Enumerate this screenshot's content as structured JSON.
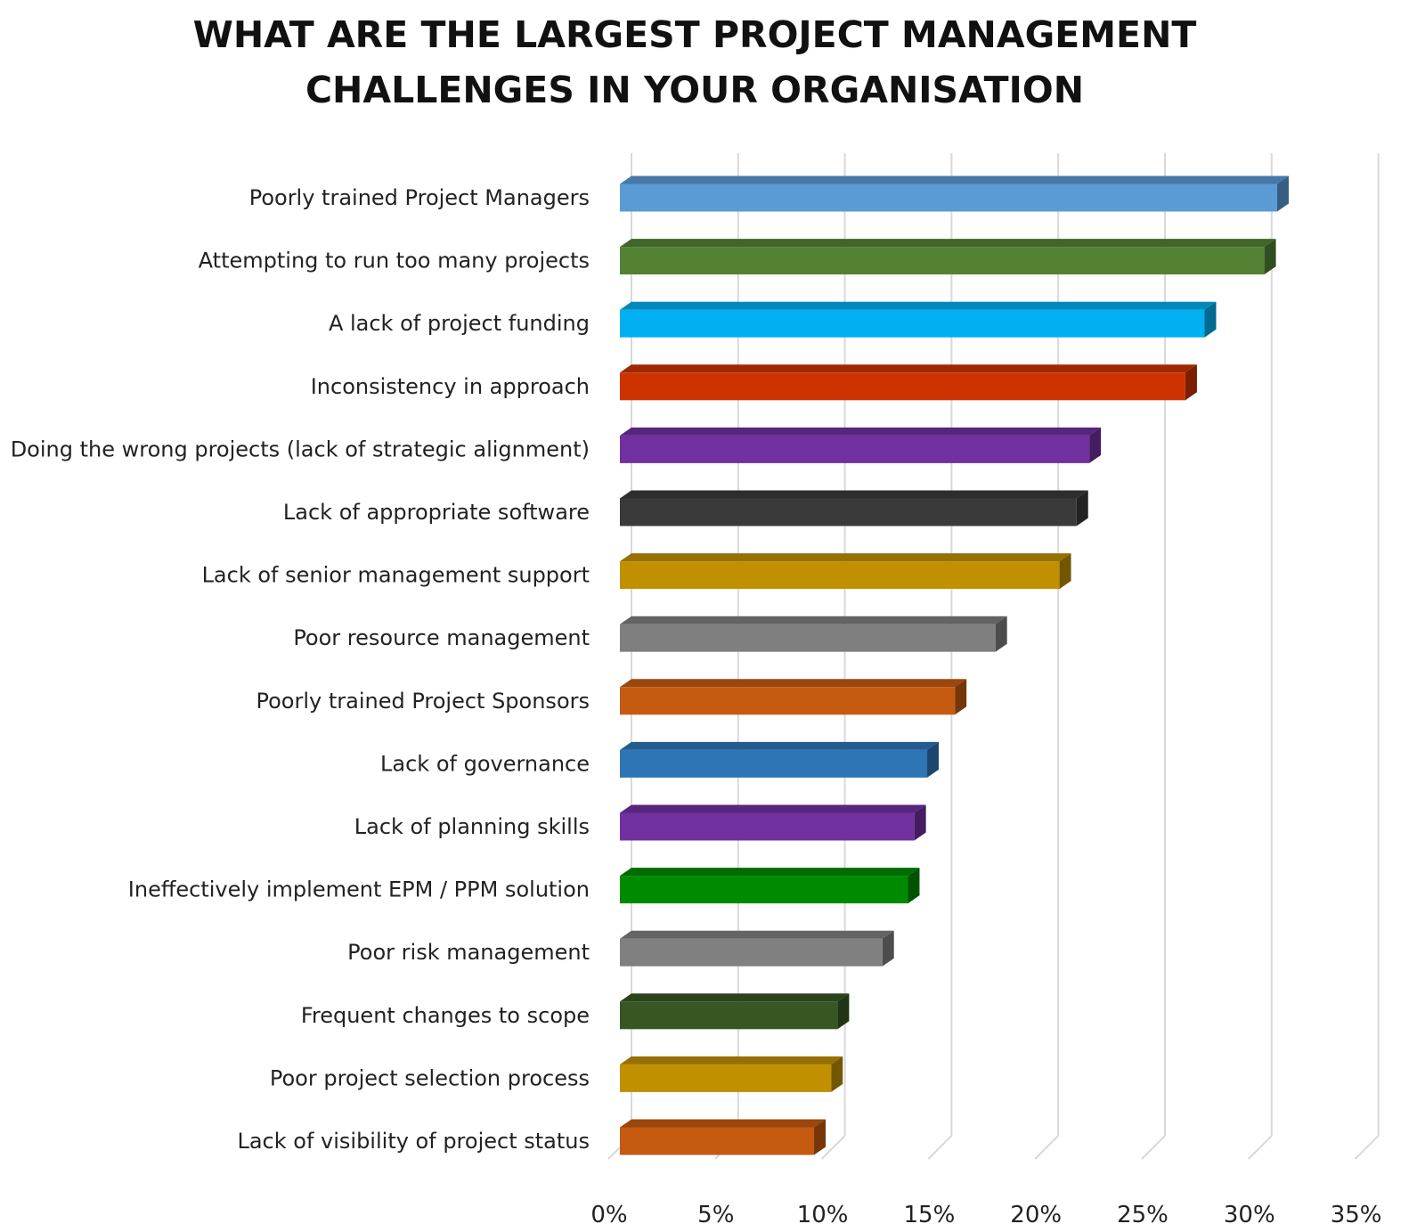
{
  "chart_data": {
    "type": "bar",
    "orientation": "horizontal",
    "style": "3d",
    "title": "WHAT ARE THE LARGEST PROJECT MANAGEMENT CHALLENGES IN YOUR ORGANISATION",
    "title_lines": [
      "WHAT ARE THE LARGEST PROJECT MANAGEMENT",
      "CHALLENGES IN YOUR ORGANISATION"
    ],
    "categories": [
      "Poorly trained Project Managers",
      "Attempting to run too many projects",
      "A lack of project funding",
      "Inconsistency in approach",
      "Doing the wrong projects (lack of strategic alignment)",
      "Lack of appropriate software",
      "Lack of senior management support",
      "Poor resource management",
      "Poorly trained Project Sponsors",
      "Lack of governance",
      "Lack of planning skills",
      "Ineffectively implement EPM / PPM solution",
      "Poor risk management",
      "Frequent changes to scope",
      "Poor project selection process",
      "Lack of visibility of project status"
    ],
    "values": [
      30.8,
      30.2,
      27.4,
      26.5,
      22.0,
      21.4,
      20.6,
      17.6,
      15.7,
      14.4,
      13.8,
      13.5,
      12.3,
      10.2,
      9.9,
      9.1
    ],
    "colors": [
      "#5b9bd5",
      "#548235",
      "#00b0f0",
      "#cc3300",
      "#7030a0",
      "#3a3a3a",
      "#c09000",
      "#7f7f7f",
      "#c55a11",
      "#2e75b6",
      "#7030a0",
      "#008a00",
      "#808080",
      "#375623",
      "#c09000",
      "#c55a11"
    ],
    "xlim": [
      0,
      35
    ],
    "xticks": [
      "0%",
      "5%",
      "10%",
      "15%",
      "20%",
      "25%",
      "30%",
      "35%"
    ],
    "xtick_values": [
      0,
      5,
      10,
      15,
      20,
      25,
      30,
      35
    ],
    "unit": "%",
    "grid": true,
    "legend": "none"
  }
}
